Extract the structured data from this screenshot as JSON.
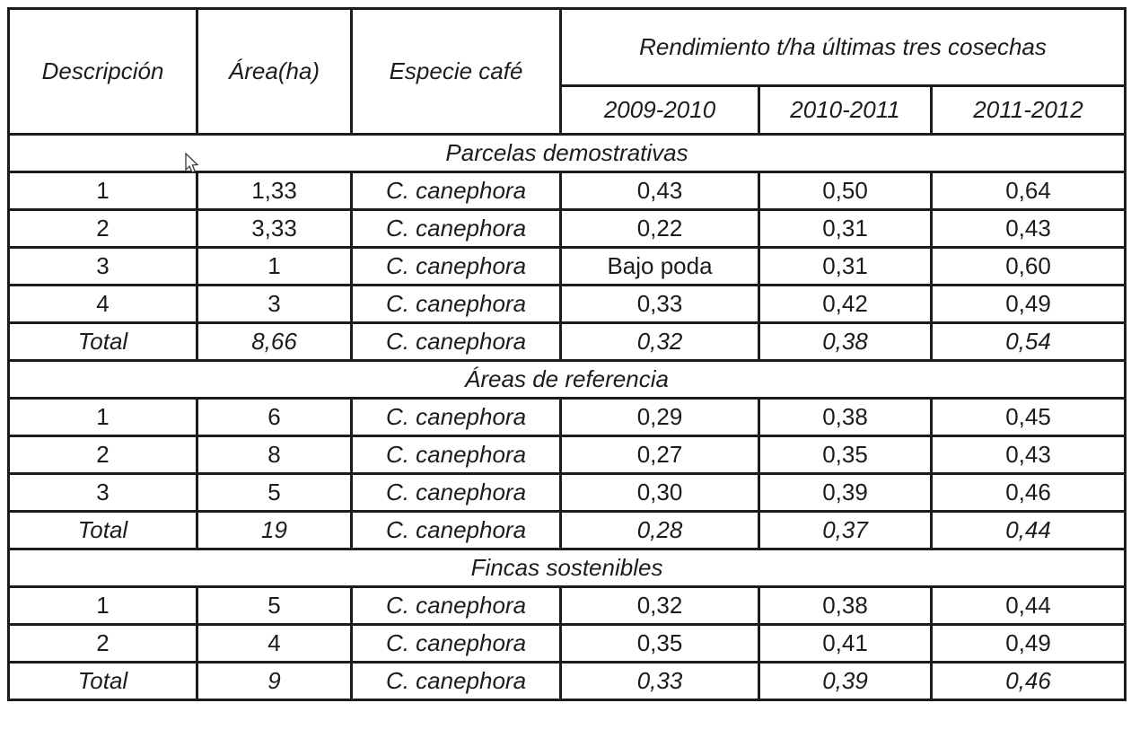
{
  "header": {
    "col_descripcion": "Descripción",
    "col_area": "Área(ha)",
    "col_especie": "Especie café",
    "col_rendimiento": "Rendimiento t/ha últimas tres cosechas",
    "years": [
      "2009-2010",
      "2010-2011",
      "2011-2012"
    ]
  },
  "sections": [
    {
      "title": "Parcelas demostrativas",
      "rows": [
        {
          "descripcion": "1",
          "area": "1,33",
          "especie": "C. canephora",
          "values": [
            "0,43",
            "0,50",
            "0,64"
          ],
          "is_total": false
        },
        {
          "descripcion": "2",
          "area": "3,33",
          "especie": "C. canephora",
          "values": [
            "0,22",
            "0,31",
            "0,43"
          ],
          "is_total": false
        },
        {
          "descripcion": "3",
          "area": "1",
          "especie": "C. canephora",
          "values": [
            "Bajo poda",
            "0,31",
            "0,60"
          ],
          "is_total": false
        },
        {
          "descripcion": "4",
          "area": "3",
          "especie": "C. canephora",
          "values": [
            "0,33",
            "0,42",
            "0,49"
          ],
          "is_total": false
        },
        {
          "descripcion": "Total",
          "area": "8,66",
          "especie": "C. canephora",
          "values": [
            "0,32",
            "0,38",
            "0,54"
          ],
          "is_total": true
        }
      ]
    },
    {
      "title": "Áreas de referencia",
      "rows": [
        {
          "descripcion": "1",
          "area": "6",
          "especie": "C. canephora",
          "values": [
            "0,29",
            "0,38",
            "0,45"
          ],
          "is_total": false
        },
        {
          "descripcion": "2",
          "area": "8",
          "especie": "C. canephora",
          "values": [
            "0,27",
            "0,35",
            "0,43"
          ],
          "is_total": false
        },
        {
          "descripcion": "3",
          "area": "5",
          "especie": "C. canephora",
          "values": [
            "0,30",
            "0,39",
            "0,46"
          ],
          "is_total": false
        },
        {
          "descripcion": "Total",
          "area": "19",
          "especie": "C. canephora",
          "values": [
            "0,28",
            "0,37",
            "0,44"
          ],
          "is_total": true
        }
      ]
    },
    {
      "title": "Fincas sostenibles",
      "rows": [
        {
          "descripcion": "1",
          "area": "5",
          "especie": "C. canephora",
          "values": [
            "0,32",
            "0,38",
            "0,44"
          ],
          "is_total": false
        },
        {
          "descripcion": "2",
          "area": "4",
          "especie": "C. canephora",
          "values": [
            "0,35",
            "0,41",
            "0,49"
          ],
          "is_total": false
        },
        {
          "descripcion": "Total",
          "area": "9",
          "especie": "C. canephora",
          "values": [
            "0,33",
            "0,39",
            "0,46"
          ],
          "is_total": true
        }
      ]
    }
  ],
  "icons": {
    "cursor": "arrow-pointer"
  },
  "colors": {
    "border": "#1c1c1e",
    "text": "#1c1c1e",
    "background": "#ffffff"
  }
}
